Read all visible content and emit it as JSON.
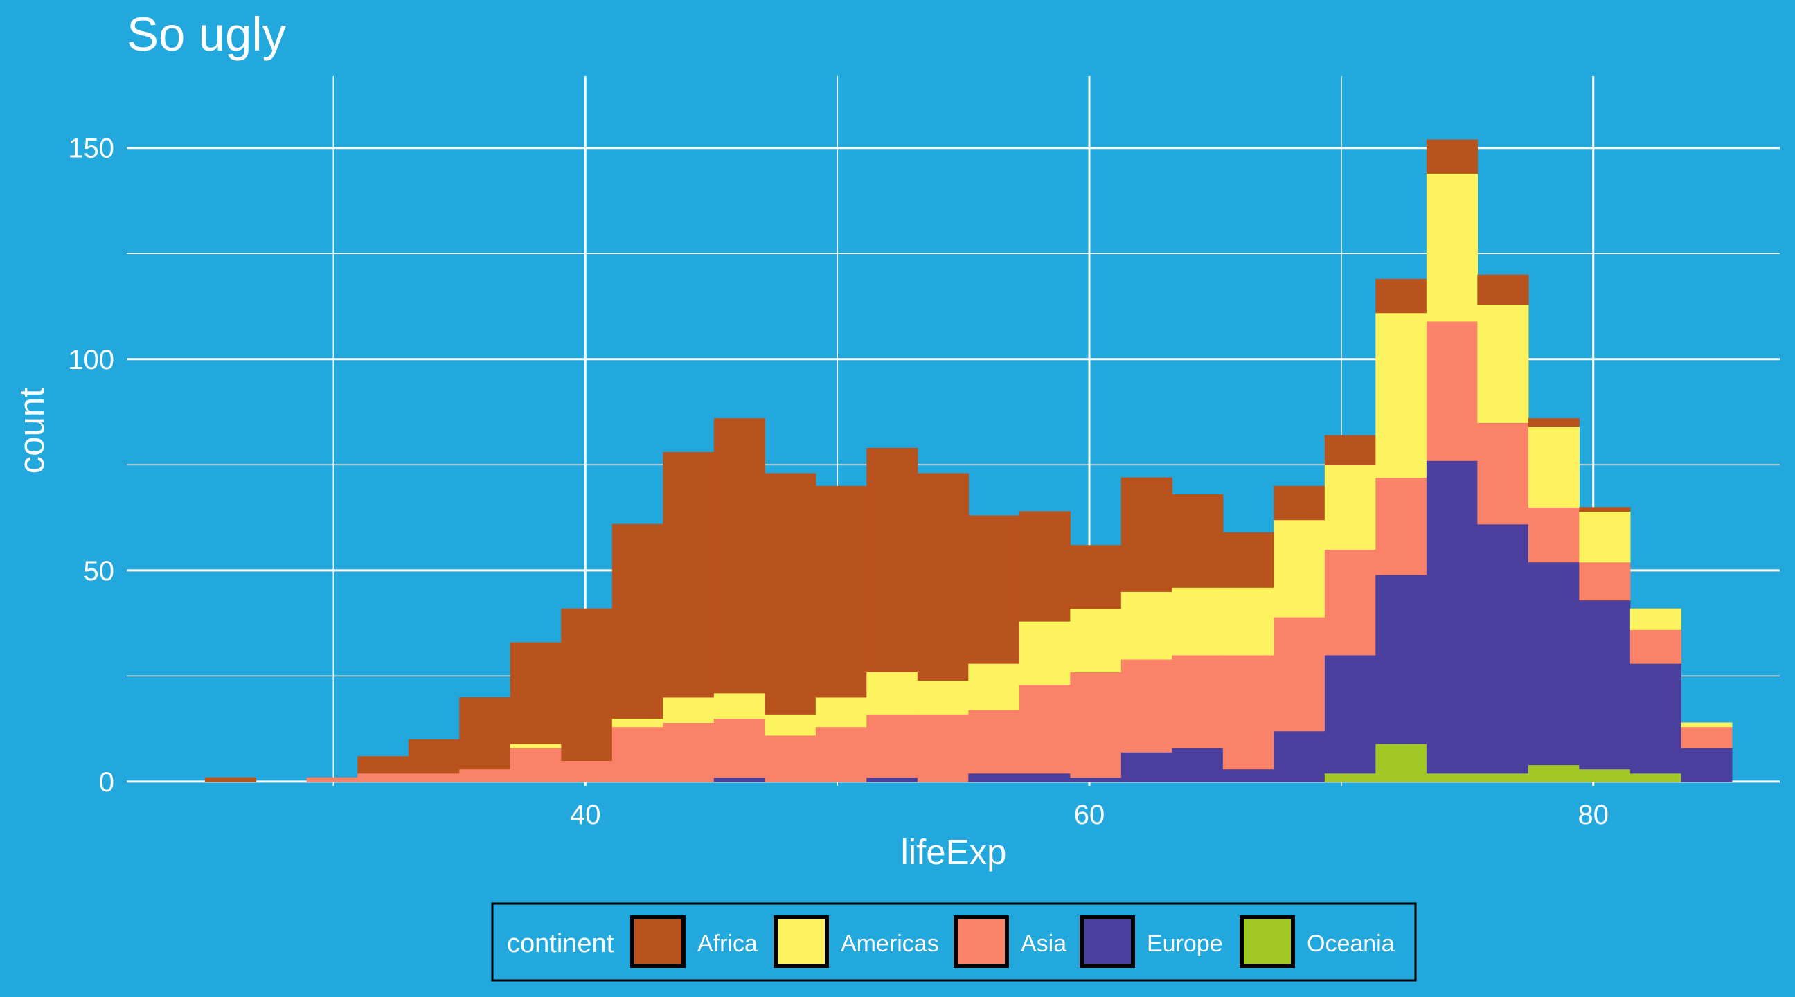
{
  "chart_data": {
    "type": "bar",
    "subtype": "stacked-histogram",
    "title": "So ugly",
    "xlabel": "lifeExp",
    "ylabel": "count",
    "xlim": [
      21.8,
      87.4
    ],
    "ylim": [
      -1,
      167
    ],
    "x_ticks": [
      40,
      60,
      80
    ],
    "x_tick_labels": [
      "40",
      "60",
      "80"
    ],
    "y_ticks": [
      0,
      50,
      100,
      150
    ],
    "y_tick_labels": [
      "0",
      "50",
      "100",
      "150"
    ],
    "grid": true,
    "bins": {
      "start": 24.9,
      "width": 2.02,
      "count": 30
    },
    "stack_order_bottom_to_top": [
      "Oceania",
      "Europe",
      "Asia",
      "Americas",
      "Africa"
    ],
    "series": [
      {
        "name": "Oceania",
        "color": "#A2C826",
        "values": [
          0,
          0,
          0,
          0,
          0,
          0,
          0,
          0,
          0,
          0,
          0,
          0,
          0,
          0,
          0,
          0,
          0,
          0,
          0,
          0,
          0,
          0,
          2,
          9,
          2,
          2,
          4,
          3,
          2,
          0
        ]
      },
      {
        "name": "Europe",
        "color": "#4A3F9D",
        "values": [
          0,
          0,
          0,
          0,
          0,
          0,
          0,
          0,
          0,
          0,
          1,
          0,
          0,
          1,
          0,
          2,
          2,
          1,
          7,
          8,
          3,
          12,
          28,
          40,
          74,
          59,
          48,
          40,
          26,
          8
        ]
      },
      {
        "name": "Asia",
        "color": "#FA8268",
        "values": [
          0,
          0,
          1,
          2,
          2,
          3,
          8,
          5,
          13,
          14,
          14,
          11,
          13,
          15,
          16,
          15,
          21,
          25,
          22,
          22,
          27,
          27,
          25,
          23,
          33,
          24,
          13,
          9,
          8,
          5
        ]
      },
      {
        "name": "Americas",
        "color": "#FDF35E",
        "values": [
          0,
          0,
          0,
          0,
          0,
          0,
          1,
          0,
          2,
          6,
          6,
          5,
          7,
          10,
          8,
          11,
          15,
          15,
          16,
          16,
          16,
          23,
          20,
          39,
          35,
          28,
          19,
          12,
          5,
          1
        ]
      },
      {
        "name": "Africa",
        "color": "#B9531D",
        "values": [
          1,
          0,
          0,
          4,
          8,
          17,
          24,
          36,
          46,
          58,
          65,
          57,
          50,
          53,
          49,
          35,
          26,
          15,
          27,
          22,
          13,
          8,
          7,
          8,
          8,
          7,
          2,
          1,
          0,
          0
        ]
      }
    ]
  },
  "legend": {
    "title": "continent",
    "items": [
      {
        "label": "Africa",
        "color": "#B9531D"
      },
      {
        "label": "Americas",
        "color": "#FDF35E"
      },
      {
        "label": "Asia",
        "color": "#FA8268"
      },
      {
        "label": "Europe",
        "color": "#4A3F9D"
      },
      {
        "label": "Oceania",
        "color": "#A2C826"
      }
    ]
  },
  "colors": {
    "background": "#22A8DC",
    "grid": "#ffffff",
    "text": "#ffffff"
  }
}
